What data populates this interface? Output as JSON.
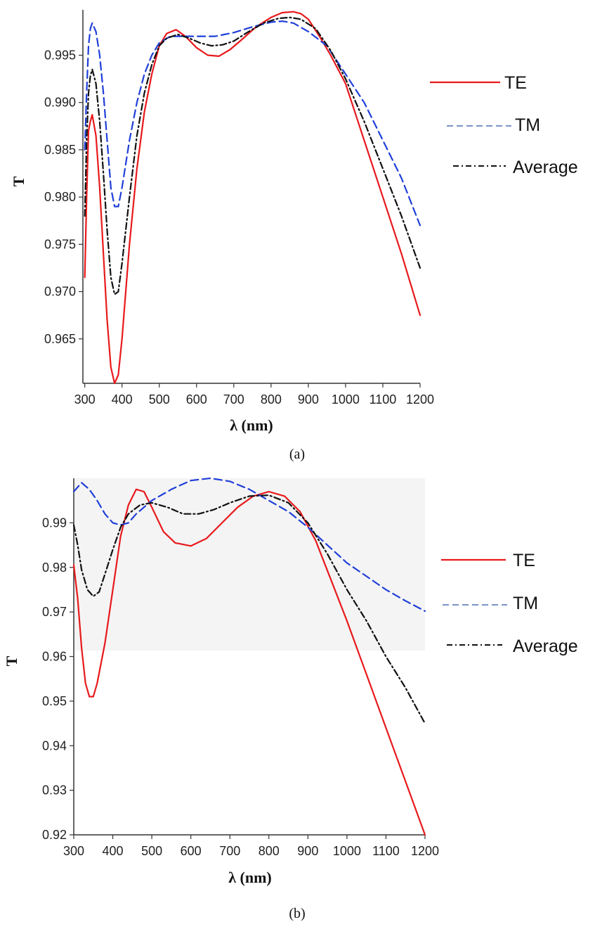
{
  "chart_data": [
    {
      "type": "line",
      "panel_label": "(a)",
      "xlabel": "λ (nm)",
      "ylabel": "T",
      "xlim": [
        295,
        1200
      ],
      "ylim": [
        0.9603,
        0.9998
      ],
      "x_ticks": [
        300,
        400,
        500,
        600,
        700,
        800,
        900,
        1000,
        1100,
        1200
      ],
      "y_ticks": [
        0.965,
        0.97,
        0.975,
        0.98,
        0.985,
        0.99,
        0.995
      ],
      "y_tick_labels": [
        "0.965",
        "0.970",
        "0.975",
        "0.980",
        "0.985",
        "0.990",
        "0.995"
      ],
      "legend_position": "right",
      "series": [
        {
          "name": "TE",
          "color": "#e8191c",
          "style": "solid",
          "points": [
            [
              300,
              0.9715
            ],
            [
              305,
              0.98
            ],
            [
              310,
              0.987
            ],
            [
              315,
              0.988
            ],
            [
              320,
              0.9887
            ],
            [
              330,
              0.9865
            ],
            [
              340,
              0.981
            ],
            [
              350,
              0.974
            ],
            [
              360,
              0.967
            ],
            [
              370,
              0.962
            ],
            [
              380,
              0.9603
            ],
            [
              390,
              0.9612
            ],
            [
              400,
              0.965
            ],
            [
              420,
              0.975
            ],
            [
              440,
              0.983
            ],
            [
              460,
              0.989
            ],
            [
              480,
              0.993
            ],
            [
              500,
              0.996
            ],
            [
              520,
              0.9973
            ],
            [
              545,
              0.9977
            ],
            [
              570,
              0.997
            ],
            [
              600,
              0.9958
            ],
            [
              630,
              0.995
            ],
            [
              660,
              0.9949
            ],
            [
              690,
              0.9956
            ],
            [
              720,
              0.9966
            ],
            [
              760,
              0.998
            ],
            [
              800,
              0.999
            ],
            [
              830,
              0.9995
            ],
            [
              860,
              0.9996
            ],
            [
              880,
              0.9994
            ],
            [
              900,
              0.9988
            ],
            [
              930,
              0.997
            ],
            [
              960,
              0.995
            ],
            [
              1000,
              0.992
            ],
            [
              1050,
              0.986
            ],
            [
              1100,
              0.98
            ],
            [
              1150,
              0.974
            ],
            [
              1200,
              0.9675
            ]
          ]
        },
        {
          "name": "TM",
          "color": "#1f3fd8",
          "style": "dashed",
          "points": [
            [
              300,
              0.985
            ],
            [
              305,
              0.991
            ],
            [
              310,
              0.996
            ],
            [
              315,
              0.9978
            ],
            [
              320,
              0.9984
            ],
            [
              330,
              0.9975
            ],
            [
              340,
              0.995
            ],
            [
              350,
              0.991
            ],
            [
              360,
              0.986
            ],
            [
              370,
              0.981
            ],
            [
              380,
              0.979
            ],
            [
              390,
              0.979
            ],
            [
              400,
              0.981
            ],
            [
              420,
              0.986
            ],
            [
              440,
              0.99
            ],
            [
              460,
              0.993
            ],
            [
              480,
              0.995
            ],
            [
              500,
              0.9963
            ],
            [
              530,
              0.997
            ],
            [
              560,
              0.997
            ],
            [
              600,
              0.997
            ],
            [
              650,
              0.997
            ],
            [
              700,
              0.9974
            ],
            [
              750,
              0.998
            ],
            [
              800,
              0.9985
            ],
            [
              830,
              0.9986
            ],
            [
              860,
              0.9984
            ],
            [
              900,
              0.9975
            ],
            [
              950,
              0.996
            ],
            [
              1000,
              0.993
            ],
            [
              1050,
              0.99
            ],
            [
              1100,
              0.986
            ],
            [
              1150,
              0.982
            ],
            [
              1200,
              0.977
            ]
          ]
        },
        {
          "name": "Average",
          "color": "#111111",
          "style": "dashdot",
          "points": [
            [
              300,
              0.978
            ],
            [
              305,
              0.986
            ],
            [
              310,
              0.991
            ],
            [
              315,
              0.9928
            ],
            [
              320,
              0.9935
            ],
            [
              330,
              0.992
            ],
            [
              340,
              0.988
            ],
            [
              350,
              0.9825
            ],
            [
              360,
              0.9765
            ],
            [
              370,
              0.9715
            ],
            [
              380,
              0.9697
            ],
            [
              390,
              0.97
            ],
            [
              400,
              0.973
            ],
            [
              420,
              0.98
            ],
            [
              440,
              0.9865
            ],
            [
              460,
              0.991
            ],
            [
              480,
              0.994
            ],
            [
              500,
              0.996
            ],
            [
              520,
              0.9968
            ],
            [
              550,
              0.9972
            ],
            [
              580,
              0.9968
            ],
            [
              610,
              0.9963
            ],
            [
              640,
              0.996
            ],
            [
              670,
              0.9961
            ],
            [
              700,
              0.9965
            ],
            [
              740,
              0.9975
            ],
            [
              780,
              0.9984
            ],
            [
              820,
              0.9989
            ],
            [
              850,
              0.999
            ],
            [
              880,
              0.9988
            ],
            [
              920,
              0.9978
            ],
            [
              960,
              0.9955
            ],
            [
              1000,
              0.9925
            ],
            [
              1050,
              0.988
            ],
            [
              1100,
              0.983
            ],
            [
              1150,
              0.978
            ],
            [
              1200,
              0.9725
            ]
          ]
        }
      ]
    },
    {
      "type": "line",
      "panel_label": "(b)",
      "xlabel": "λ (nm)",
      "ylabel": "T",
      "xlim": [
        300,
        1200
      ],
      "ylim": [
        0.92,
        1.0
      ],
      "x_ticks": [
        300,
        400,
        500,
        600,
        700,
        800,
        900,
        1000,
        1100,
        1200
      ],
      "y_ticks": [
        0.92,
        0.93,
        0.94,
        0.95,
        0.96,
        0.97,
        0.98,
        0.99
      ],
      "y_tick_labels": [
        "0.92",
        "0.93",
        "0.94",
        "0.95",
        "0.96",
        "0.97",
        "0.98",
        "0.99"
      ],
      "legend_position": "right",
      "series": [
        {
          "name": "TE",
          "color": "#e8191c",
          "style": "solid",
          "points": [
            [
              300,
              0.9805
            ],
            [
              310,
              0.973
            ],
            [
              320,
              0.962
            ],
            [
              330,
              0.954
            ],
            [
              340,
              0.951
            ],
            [
              350,
              0.951
            ],
            [
              360,
              0.954
            ],
            [
              380,
              0.963
            ],
            [
              400,
              0.975
            ],
            [
              420,
              0.987
            ],
            [
              440,
              0.994
            ],
            [
              460,
              0.9975
            ],
            [
              480,
              0.997
            ],
            [
              500,
              0.9935
            ],
            [
              530,
              0.988
            ],
            [
              560,
              0.9855
            ],
            [
              600,
              0.9848
            ],
            [
              640,
              0.9865
            ],
            [
              680,
              0.99
            ],
            [
              720,
              0.9935
            ],
            [
              760,
              0.996
            ],
            [
              800,
              0.997
            ],
            [
              840,
              0.996
            ],
            [
              880,
              0.9925
            ],
            [
              920,
              0.986
            ],
            [
              960,
              0.977
            ],
            [
              1000,
              0.968
            ],
            [
              1050,
              0.956
            ],
            [
              1100,
              0.944
            ],
            [
              1150,
              0.932
            ],
            [
              1200,
              0.92
            ]
          ]
        },
        {
          "name": "TM",
          "color": "#1f3fd8",
          "style": "dashed",
          "points": [
            [
              300,
              0.997
            ],
            [
              320,
              0.999
            ],
            [
              340,
              0.9975
            ],
            [
              360,
              0.995
            ],
            [
              380,
              0.992
            ],
            [
              400,
              0.99
            ],
            [
              420,
              0.9895
            ],
            [
              440,
              0.99
            ],
            [
              460,
              0.992
            ],
            [
              500,
              0.995
            ],
            [
              550,
              0.9975
            ],
            [
              600,
              0.9995
            ],
            [
              650,
              1.0
            ],
            [
              700,
              0.9993
            ],
            [
              750,
              0.9975
            ],
            [
              800,
              0.995
            ],
            [
              850,
              0.9925
            ],
            [
              900,
              0.989
            ],
            [
              950,
              0.985
            ],
            [
              1000,
              0.981
            ],
            [
              1050,
              0.978
            ],
            [
              1100,
              0.975
            ],
            [
              1150,
              0.9725
            ],
            [
              1200,
              0.9702
            ]
          ]
        },
        {
          "name": "Average",
          "color": "#111111",
          "style": "dashdot",
          "points": [
            [
              300,
              0.9895
            ],
            [
              310,
              0.985
            ],
            [
              320,
              0.9795
            ],
            [
              335,
              0.975
            ],
            [
              350,
              0.9735
            ],
            [
              365,
              0.9745
            ],
            [
              380,
              0.9785
            ],
            [
              400,
              0.984
            ],
            [
              420,
              0.989
            ],
            [
              440,
              0.992
            ],
            [
              470,
              0.994
            ],
            [
              500,
              0.9945
            ],
            [
              540,
              0.9935
            ],
            [
              580,
              0.992
            ],
            [
              620,
              0.992
            ],
            [
              660,
              0.993
            ],
            [
              700,
              0.9945
            ],
            [
              750,
              0.996
            ],
            [
              800,
              0.9962
            ],
            [
              850,
              0.9945
            ],
            [
              900,
              0.99
            ],
            [
              950,
              0.983
            ],
            [
              1000,
              0.975
            ],
            [
              1050,
              0.968
            ],
            [
              1100,
              0.96
            ],
            [
              1150,
              0.953
            ],
            [
              1200,
              0.945
            ]
          ]
        }
      ]
    }
  ]
}
